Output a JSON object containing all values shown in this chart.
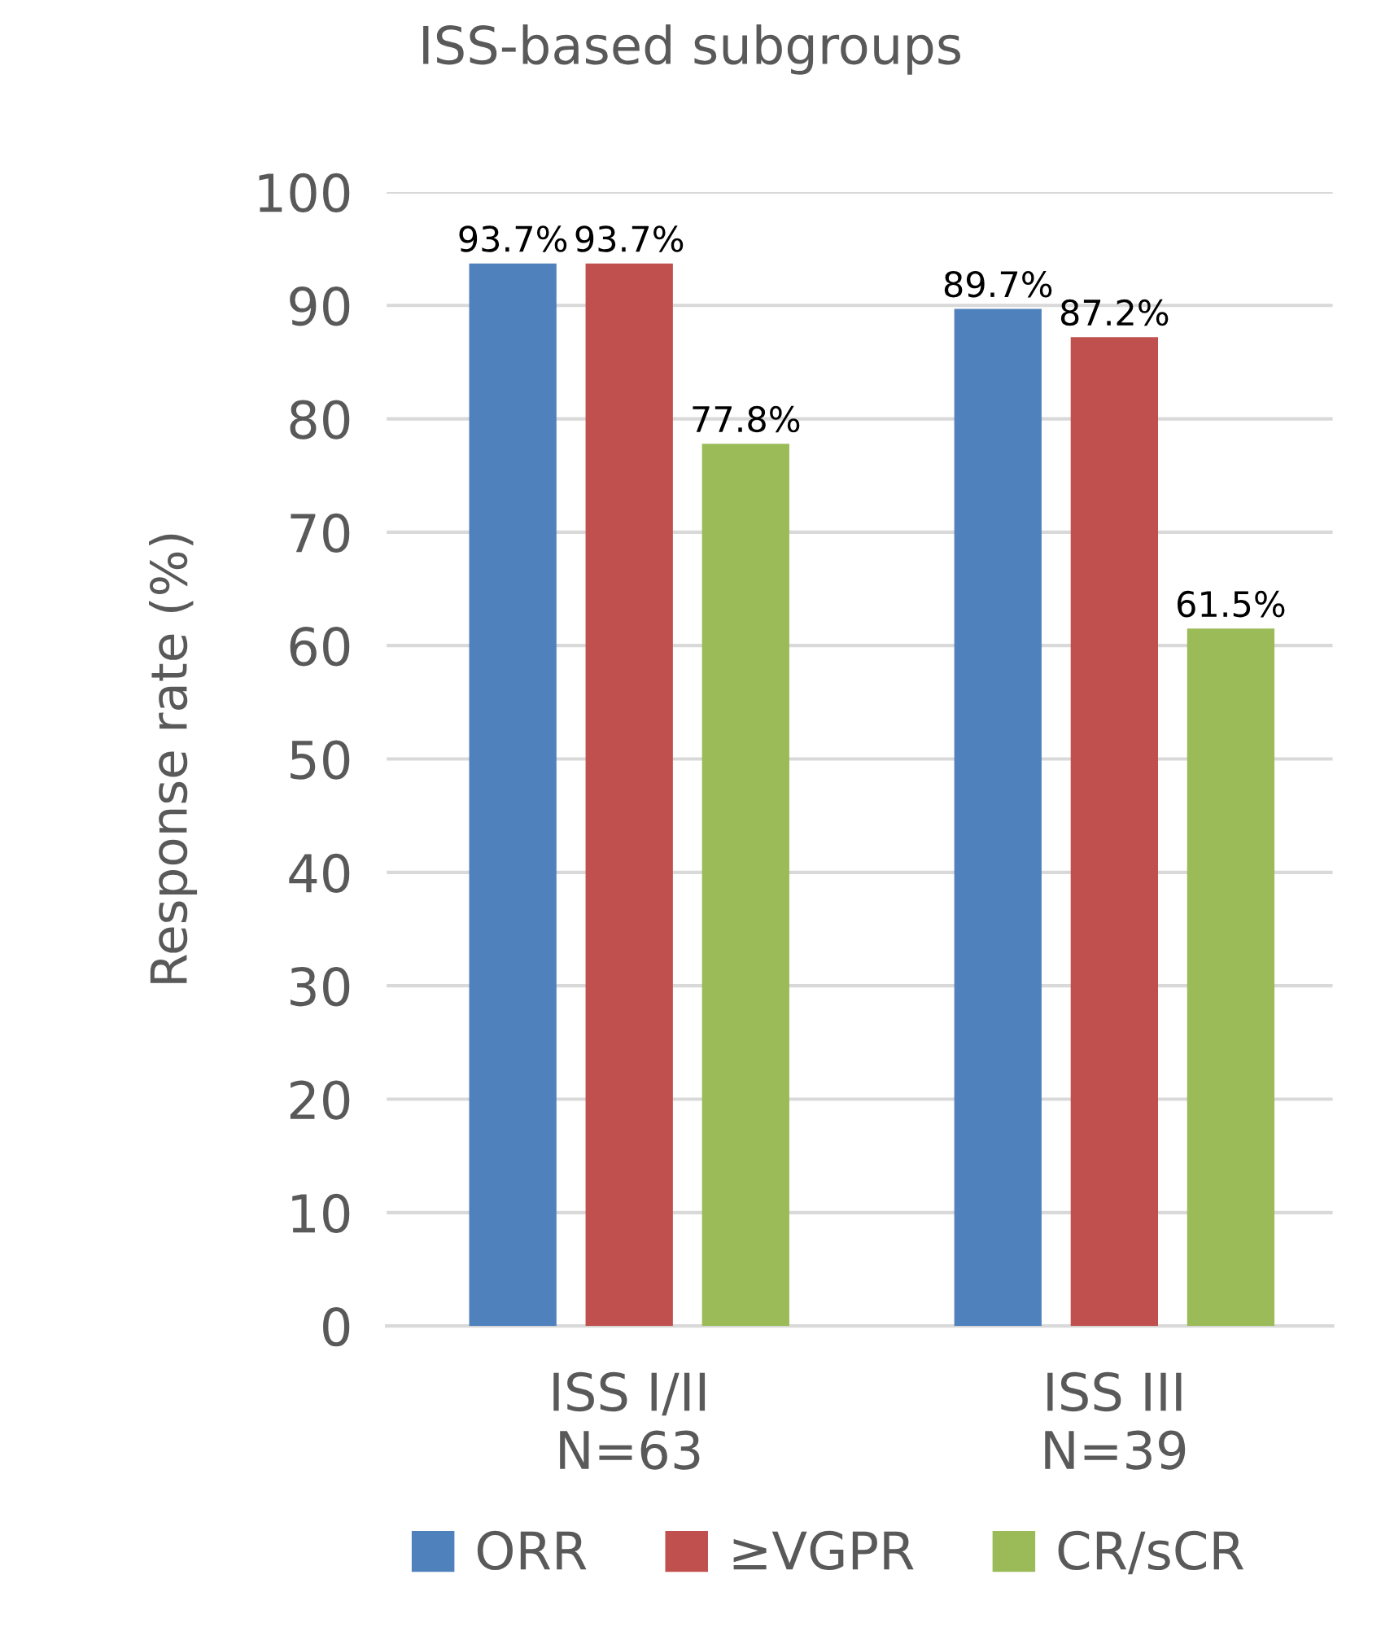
{
  "chart_data": {
    "type": "bar",
    "title": "ISS-based subgroups",
    "ylabel": "Response rate (%)",
    "categories": [
      "ISS I/II\nN=63",
      "ISS III\nN=39"
    ],
    "series": [
      {
        "name": "ORR",
        "color": "#4f81bd",
        "values": [
          93.7,
          89.7
        ],
        "value_labels": [
          "93.7%",
          "89.7%"
        ]
      },
      {
        "name": "≥VGPR",
        "color": "#c0504d",
        "values": [
          93.7,
          87.2
        ],
        "value_labels": [
          "93.7%",
          "87.2%"
        ]
      },
      {
        "name": "CR/sCR",
        "color": "#9bbb59",
        "values": [
          77.8,
          61.5
        ],
        "value_labels": [
          "77.8%",
          "61.5%"
        ]
      }
    ],
    "ylim": [
      0,
      100
    ],
    "yticks": [
      0,
      10,
      20,
      30,
      40,
      50,
      60,
      70,
      80,
      90,
      100
    ],
    "grid": "y",
    "legend": "bottom"
  }
}
